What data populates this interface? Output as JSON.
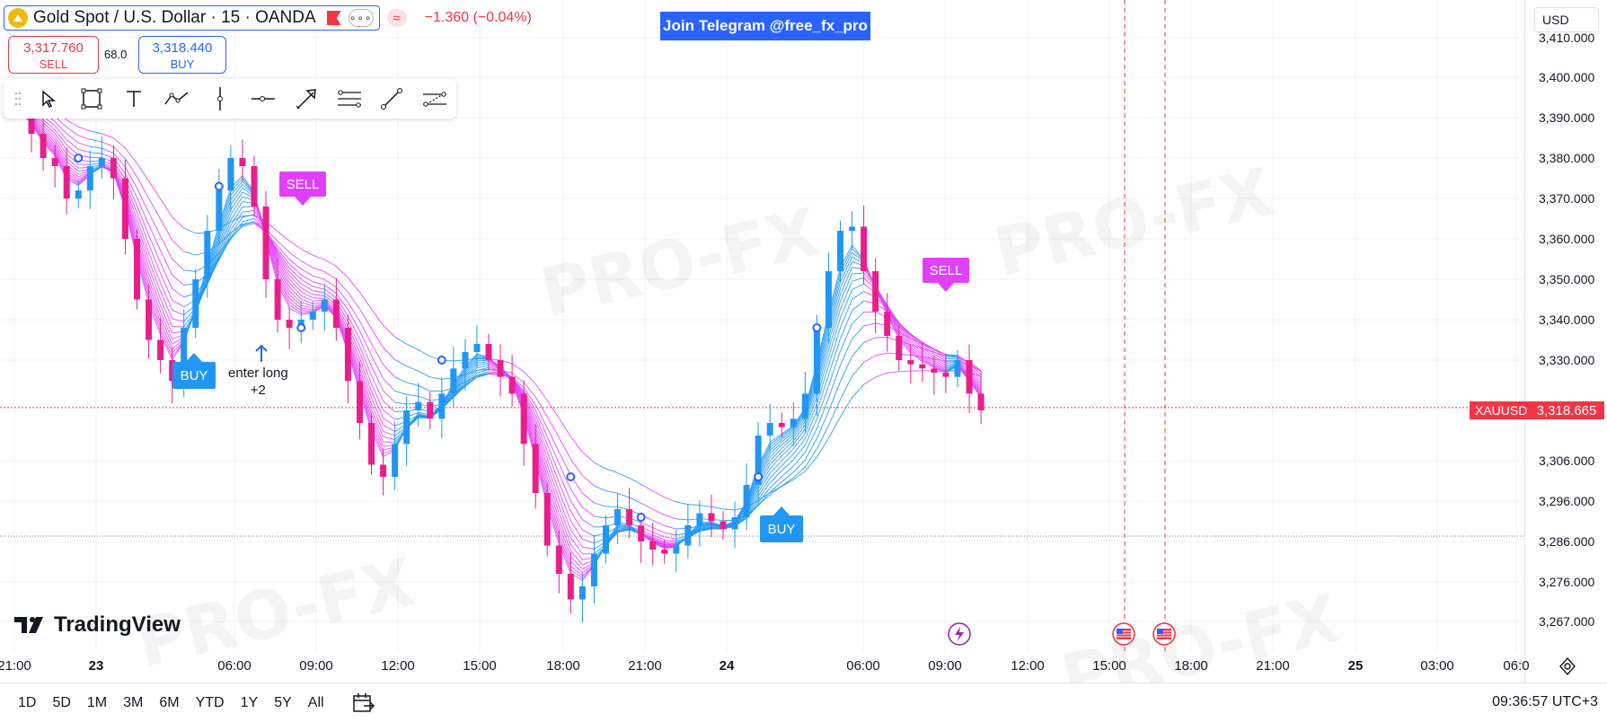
{
  "header": {
    "symbol_title": "Gold Spot / U.S. Dollar · 15 · OANDA",
    "change_text": "−1.360 (−0.04%)",
    "more_label": "∘∘∘",
    "wave_label": "≈"
  },
  "banner": {
    "text": "Join Telegram @free_fx_pro"
  },
  "quotes": {
    "sell_price": "3,317.760",
    "sell_label": "SELL",
    "spread": "68.0",
    "buy_price": "3,318.440",
    "buy_label": "BUY"
  },
  "drawing_toolbar": {
    "tools": [
      "cursor-icon",
      "rectangle-icon",
      "text-icon",
      "path-icon",
      "vertical-line-icon",
      "horizontal-ray-icon",
      "arrow-icon",
      "fib-icon",
      "trend-line-icon",
      "parallel-channel-icon"
    ]
  },
  "price_axis": {
    "currency": "USD",
    "labels": [
      "3,410.000",
      "3,400.000",
      "3,390.000",
      "3,380.000",
      "3,370.000",
      "3,360.000",
      "3,350.000",
      "3,340.000",
      "3,330.000",
      "3,306.000",
      "3,296.000",
      "3,286.000",
      "3,276.000",
      "3,267.000"
    ],
    "current_symbol": "XAUUSD",
    "current_price": "3,318.665"
  },
  "time_axis": {
    "labels": [
      "21:00",
      "23",
      "06:00",
      "09:00",
      "12:00",
      "15:00",
      "18:00",
      "21:00",
      "24",
      "06:00",
      "09:00",
      "12:00",
      "15:00",
      "18:00",
      "21:00",
      "25",
      "03:00",
      "06:0"
    ]
  },
  "signals": {
    "buy1": "BUY",
    "buy2": "BUY",
    "sell1": "SELL",
    "sell2": "SELL",
    "enter_long_line1": "enter long",
    "enter_long_line2": "+2"
  },
  "watermark": {
    "text": "PRO-FX"
  },
  "logo": {
    "text": "TradingView"
  },
  "bottom_bar": {
    "ranges": [
      "1D",
      "5D",
      "1M",
      "3M",
      "6M",
      "YTD",
      "1Y",
      "5Y",
      "All"
    ],
    "clock": "09:36:57 UTC+3"
  },
  "colors": {
    "up_candle": "#2196f3",
    "down_candle": "#e91e8c",
    "ribbon_bull": "#2196f3",
    "ribbon_bear": "#e040fb",
    "last_price": "#f23645"
  },
  "chart_data": {
    "type": "line",
    "instrument": "Gold Spot / U.S. Dollar",
    "timeframe": "15",
    "ylim": [
      3263,
      3412
    ],
    "series": [
      {
        "values": [
          3393,
          3386,
          3380,
          3378,
          3370,
          3372,
          3378,
          3380,
          3375,
          3360,
          3345,
          3335,
          3330,
          3325,
          3338,
          3350,
          3362,
          3372,
          3380,
          3378,
          3368,
          3350,
          3340,
          3338,
          3340,
          3342,
          3345,
          3338,
          3325,
          3315,
          3305,
          3302,
          3310,
          3318,
          3320,
          3316,
          3322,
          3328,
          3332,
          3334,
          3330,
          3326,
          3322,
          3310,
          3298,
          3285,
          3278,
          3272,
          3275,
          3283,
          3290,
          3294,
          3290,
          3286,
          3284,
          3283,
          3285,
          3290,
          3293,
          3291,
          3289,
          3292,
          3300,
          3312,
          3315,
          3314,
          3316,
          3322,
          3338,
          3352,
          3362,
          3363,
          3352,
          3342,
          3336,
          3330,
          3329,
          3328,
          3327,
          3326,
          3330,
          3322,
          3318
        ]
      }
    ]
  }
}
